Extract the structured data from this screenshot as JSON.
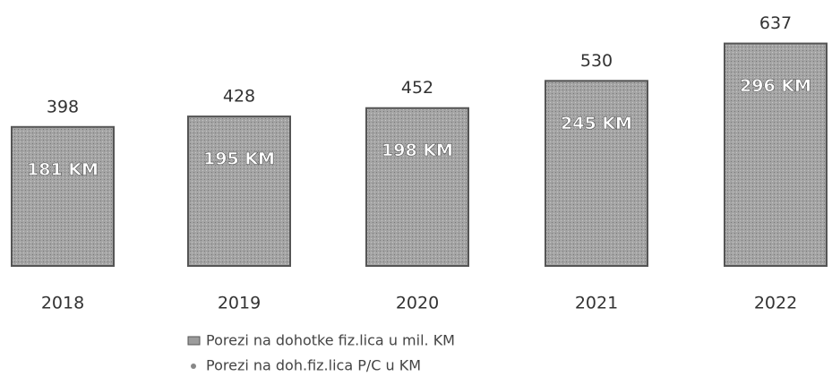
{
  "chart_data": {
    "type": "bar",
    "categories": [
      "2018",
      "2019",
      "2020",
      "2021",
      "2022"
    ],
    "series": [
      {
        "name": "Porezi na dohotke fiz.lica u mil. KM",
        "color": "#9c9c9c",
        "values": [
          398,
          428,
          452,
          530,
          637
        ]
      },
      {
        "name": "Porezi na doh.fiz.lica P/C u KM",
        "color": "#ffffff",
        "values": [
          181,
          195,
          198,
          245,
          296
        ],
        "value_labels": [
          "181 KM",
          "195 KM",
          "198 KM",
          "245 KM",
          "296 KM"
        ]
      }
    ]
  }
}
